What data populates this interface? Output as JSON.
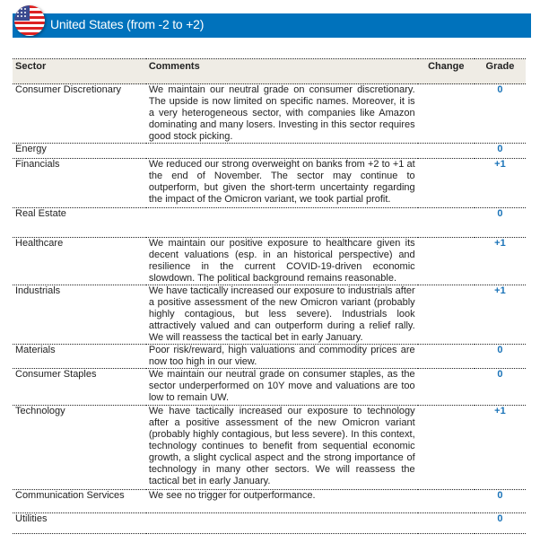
{
  "header": {
    "title": "United States (from -2 to +2)",
    "flag_icon": "us-flag-icon",
    "banner_color": "#0072bc"
  },
  "table": {
    "columns": [
      "Sector",
      "Comments",
      "Change",
      "Grade"
    ],
    "rows": [
      {
        "sector": "Consumer Discretionary",
        "comment": "We maintain our neutral grade on consumer discretionary. The upside is now limited on specific names. Moreover, it is a very heterogeneous sector, with companies like Amazon dominating and many losers. Investing in this sector requires good stock picking.",
        "change": "",
        "grade": "0"
      },
      {
        "sector": "Energy",
        "comment": "",
        "change": "",
        "grade": "0"
      },
      {
        "sector": "Financials",
        "comment": "We reduced our strong overweight on banks from +2 to +1 at the end of November. The sector may continue to outperform, but given the short-term uncertainty regarding the impact of the Omicron variant, we took partial profit.",
        "change": "",
        "grade": "+1"
      },
      {
        "sector": "Real Estate",
        "comment": "",
        "change": "",
        "grade": "0"
      },
      {
        "sector": "Healthcare",
        "comment": "We maintain our positive exposure to healthcare given its decent valuations (esp. in an historical perspective) and resilience in the current COVID-19-driven economic slowdown. The political background remains reasonable.",
        "change": "",
        "grade": "+1"
      },
      {
        "sector": "Industrials",
        "comment": "We have tactically increased our exposure to industrials after a positive assessment of the new Omicron variant (probably highly contagious, but less severe). Industrials look attractively valued and can outperform during a relief rally. We will reassess the tactical bet in early January.",
        "change": "",
        "grade": "+1"
      },
      {
        "sector": "Materials",
        "comment": "Poor risk/reward, high valuations and commodity prices are now too high in our view.",
        "change": "",
        "grade": "0"
      },
      {
        "sector": "Consumer Staples",
        "comment": "We maintain our neutral grade on consumer staples, as the sector underperformed on 10Y move and valuations are too low to remain UW.",
        "change": "",
        "grade": "0"
      },
      {
        "sector": "Technology",
        "comment": "We have tactically increased our exposure to technology after a positive assessment of the new Omicron variant (probably highly contagious, but less severe). In this context, technology continues to benefit from sequential economic growth, a slight cyclical aspect and the strong importance of technology in many other sectors. We will reassess the tactical bet in early January.",
        "change": "",
        "grade": "+1"
      },
      {
        "sector": "Communication Services",
        "comment": "We see no trigger for outperformance.",
        "change": "",
        "grade": "0"
      },
      {
        "sector": "Utilities",
        "comment": "",
        "change": "",
        "grade": "0"
      }
    ]
  },
  "colors": {
    "grade": "#1a73b8",
    "header_bg": "#efece5"
  }
}
